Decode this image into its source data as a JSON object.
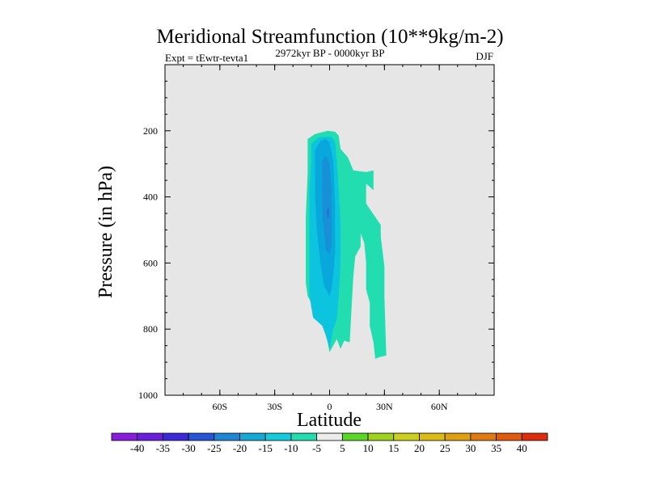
{
  "chart_data": {
    "type": "contour",
    "title": "Meridional Streamfunction (10**9kg/m-2)",
    "subtitle_left": "Expt = tEwtr-tevta1",
    "subtitle_center": "2972kyr BP - 0000kyr BP",
    "subtitle_right": "DJF",
    "xlabel": "Latitude",
    "ylabel": "Pressure (in hPa)",
    "xlim": [
      -90,
      90
    ],
    "ylim": [
      0,
      1000
    ],
    "y_inverted": true,
    "x_ticks": [
      {
        "value": -60,
        "label": "60S"
      },
      {
        "value": -30,
        "label": "30S"
      },
      {
        "value": 0,
        "label": "0"
      },
      {
        "value": 30,
        "label": "30N"
      },
      {
        "value": 60,
        "label": "60N"
      }
    ],
    "y_ticks": [
      {
        "value": 200,
        "label": "200"
      },
      {
        "value": 400,
        "label": "400"
      },
      {
        "value": 600,
        "label": "600"
      },
      {
        "value": 800,
        "label": "800"
      },
      {
        "value": 1000,
        "label": "1000"
      }
    ],
    "background_color": "#e6e6e6",
    "contour_regions": [
      {
        "name": "-5 to 0",
        "color": "#22ddb0",
        "points": [
          [
            -12,
            225
          ],
          [
            -8,
            210
          ],
          [
            -1,
            200
          ],
          [
            3,
            203
          ],
          [
            5,
            215
          ],
          [
            6,
            255
          ],
          [
            10,
            280
          ],
          [
            13,
            320
          ],
          [
            20,
            325
          ],
          [
            24,
            320
          ],
          [
            24,
            380
          ],
          [
            20,
            360
          ],
          [
            20,
            420
          ],
          [
            28,
            485
          ],
          [
            28,
            520
          ],
          [
            30,
            610
          ],
          [
            30,
            700
          ],
          [
            31,
            880
          ],
          [
            27,
            885
          ],
          [
            25,
            890
          ],
          [
            24,
            840
          ],
          [
            22,
            790
          ],
          [
            22,
            720
          ],
          [
            20,
            680
          ],
          [
            20,
            600
          ],
          [
            19,
            540
          ],
          [
            17,
            510
          ],
          [
            17,
            550
          ],
          [
            14,
            580
          ],
          [
            13,
            640
          ],
          [
            12,
            740
          ],
          [
            11,
            840
          ],
          [
            8,
            835
          ],
          [
            6,
            860
          ],
          [
            4,
            830
          ],
          [
            0,
            870
          ],
          [
            -1,
            840
          ],
          [
            -3,
            790
          ],
          [
            -6,
            780
          ],
          [
            -9,
            760
          ],
          [
            -10,
            720
          ],
          [
            -12,
            700
          ],
          [
            -13,
            660
          ],
          [
            -13,
            540
          ],
          [
            -13,
            460
          ],
          [
            -12,
            330
          ],
          [
            -12,
            260
          ]
        ]
      },
      {
        "name": "-10 to -5",
        "color": "#0cc4dd",
        "points": [
          [
            -10,
            240
          ],
          [
            -6,
            220
          ],
          [
            -2,
            218
          ],
          [
            1,
            218
          ],
          [
            3,
            235
          ],
          [
            4,
            290
          ],
          [
            5,
            380
          ],
          [
            6,
            480
          ],
          [
            6,
            600
          ],
          [
            5,
            700
          ],
          [
            4,
            770
          ],
          [
            2,
            800
          ],
          [
            0,
            860
          ],
          [
            -2,
            820
          ],
          [
            -4,
            790
          ],
          [
            -7,
            775
          ],
          [
            -9,
            765
          ],
          [
            -11,
            700
          ],
          [
            -11,
            600
          ],
          [
            -11,
            500
          ],
          [
            -11,
            380
          ],
          [
            -10,
            290
          ]
        ]
      },
      {
        "name": "-15 to -10",
        "color": "#08a8dd",
        "points": [
          [
            -8,
            260
          ],
          [
            -5,
            230
          ],
          [
            -2,
            225
          ],
          [
            0,
            235
          ],
          [
            2,
            290
          ],
          [
            3,
            420
          ],
          [
            3,
            570
          ],
          [
            2,
            640
          ],
          [
            1,
            680
          ],
          [
            0,
            700
          ],
          [
            -3,
            670
          ],
          [
            -5,
            600
          ],
          [
            -7,
            500
          ],
          [
            -8,
            390
          ]
        ]
      },
      {
        "name": "-20 to -15",
        "color": "#1890d8",
        "points": [
          [
            -4,
            290
          ],
          [
            -2,
            275
          ],
          [
            0,
            300
          ],
          [
            1,
            380
          ],
          [
            1,
            480
          ],
          [
            1,
            540
          ],
          [
            0,
            575
          ],
          [
            -2,
            560
          ],
          [
            -4,
            460
          ],
          [
            -4,
            370
          ]
        ]
      },
      {
        "name": "-25 to -20",
        "color": "#2173d0",
        "points": [
          [
            -1,
            430
          ],
          [
            -0.2,
            440
          ],
          [
            -0.4,
            465
          ],
          [
            -1.3,
            460
          ],
          [
            -1.5,
            445
          ]
        ]
      }
    ],
    "colorbar": {
      "levels": [
        -40,
        -35,
        -30,
        -25,
        -20,
        -15,
        -10,
        -5,
        5,
        10,
        15,
        20,
        25,
        30,
        35,
        40
      ],
      "colors": [
        "#8a1ddd",
        "#6b1edb",
        "#3c2ad8",
        "#2854d6",
        "#1f86d6",
        "#16a8d6",
        "#14cbdc",
        "#22ddb0",
        "#ececec",
        "#5ad528",
        "#9ed21e",
        "#cccf20",
        "#dcbc14",
        "#dfa010",
        "#e07a12",
        "#e05a10",
        "#dc2c0c"
      ]
    }
  }
}
